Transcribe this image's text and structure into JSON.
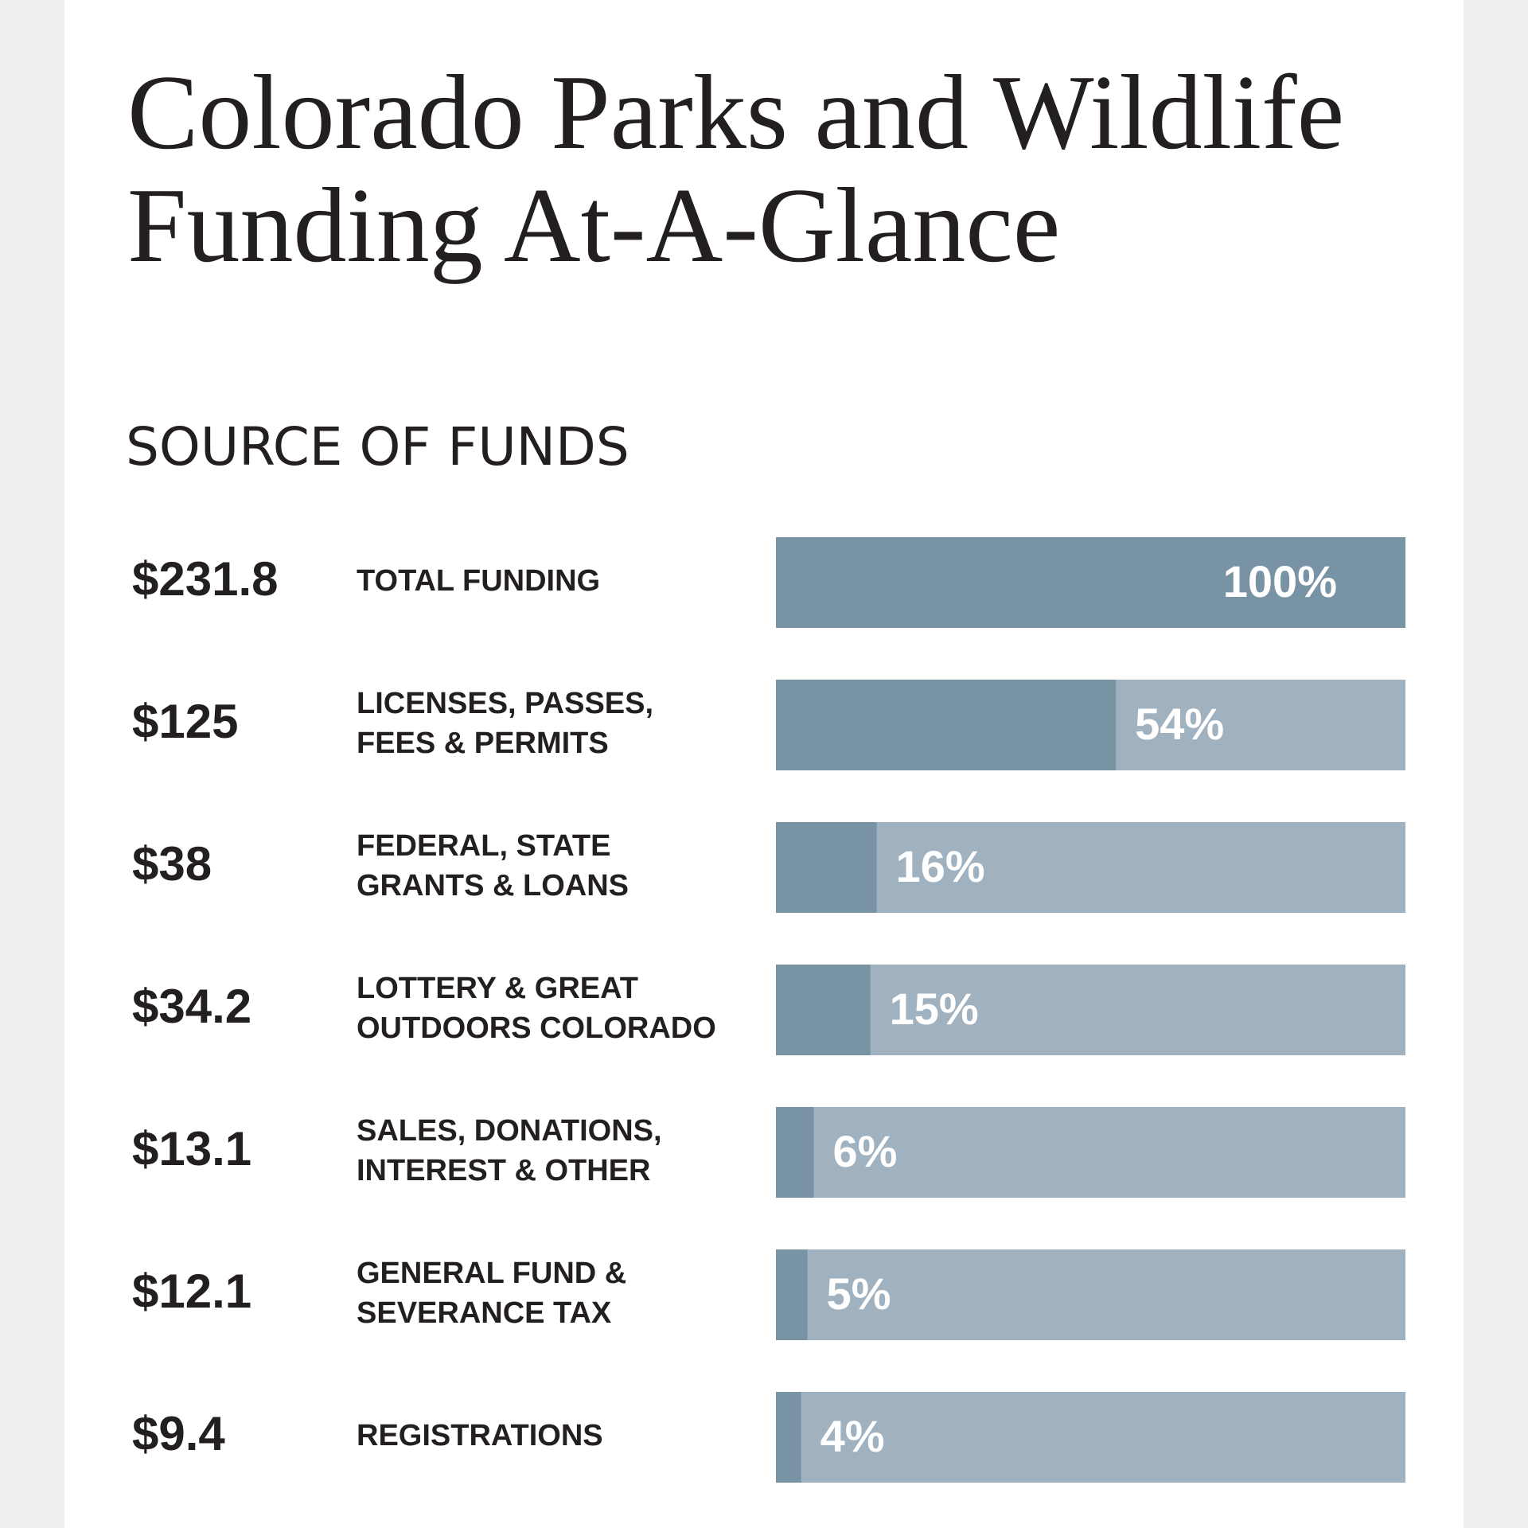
{
  "chart_data": {
    "type": "bar",
    "title": [
      "Colorado Parks and Wildlife",
      "Funding At-A-Glance"
    ],
    "subtitle": "SOURCE OF FUNDS",
    "categories": [
      [
        "TOTAL FUNDING"
      ],
      [
        "LICENSES, PASSES,",
        "FEES & PERMITS"
      ],
      [
        "FEDERAL, STATE",
        "GRANTS & LOANS"
      ],
      [
        "LOTTERY & GREAT",
        "OUTDOORS COLORADO"
      ],
      [
        "SALES, DONATIONS,",
        "INTEREST & OTHER"
      ],
      [
        "GENERAL FUND &",
        "SEVERANCE TAX"
      ],
      [
        "REGISTRATIONS"
      ]
    ],
    "amounts": [
      231.8,
      125,
      38,
      34.2,
      13.1,
      12.1,
      9.4
    ],
    "amount_labels": [
      "$231.8",
      "$125",
      "$38",
      "$34.2",
      "$13.1",
      "$12.1",
      "$9.4"
    ],
    "values": [
      100,
      54,
      16,
      15,
      6,
      5,
      4
    ],
    "value_labels": [
      "100%",
      "54%",
      "16%",
      "15%",
      "6%",
      "5%",
      "4%"
    ],
    "xlim": [
      0,
      100
    ],
    "color": "#7893a3",
    "track_color": "#a0b1bf"
  }
}
